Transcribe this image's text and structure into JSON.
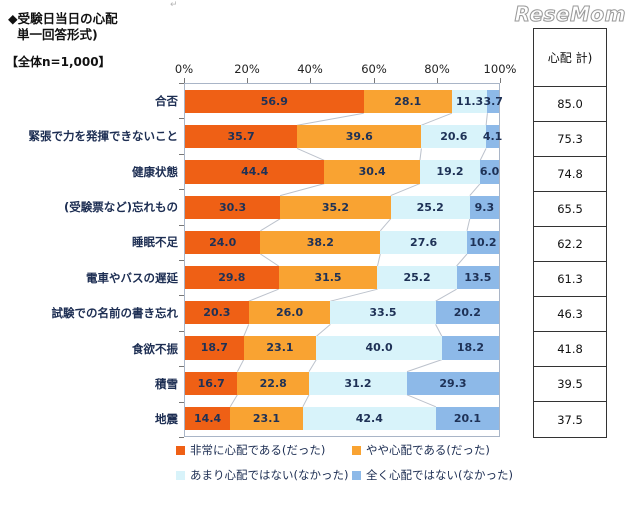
{
  "header": {
    "title_line1": "◆受験日当日の心配",
    "title_line2": "単一回答形式)",
    "sample_label": "【全体n=1,000】"
  },
  "logo": {
    "text": "ReseMom"
  },
  "marks": {
    "return_mark": "↵"
  },
  "side_table": {
    "header": "心配 計)",
    "values": [
      "85.0",
      "75.3",
      "74.8",
      "65.5",
      "62.2",
      "61.3",
      "46.3",
      "41.8",
      "39.5",
      "37.5"
    ]
  },
  "chart_data": {
    "type": "bar",
    "orientation": "horizontal-stacked",
    "title": "受験日当日の心配",
    "xlabel": "",
    "ylabel": "",
    "x_axis": {
      "min": 0,
      "max": 100,
      "ticks": [
        "0%",
        "20%",
        "40%",
        "60%",
        "80%",
        "100%"
      ]
    },
    "grid": false,
    "legend_position": "bottom",
    "categories": [
      "合否",
      "緊張で力を発揮できないこと",
      "健康状態",
      "(受験票など)忘れもの",
      "睡眠不足",
      "電車やバスの遅延",
      "試験での名前の書き忘れ",
      "食欲不振",
      "積雪",
      "地震"
    ],
    "series": [
      {
        "name": "非常に心配である(だった)",
        "color": "#EF6015",
        "values": [
          56.9,
          35.7,
          44.4,
          30.3,
          24.0,
          29.8,
          20.3,
          18.7,
          16.7,
          14.4
        ]
      },
      {
        "name": "やや心配である(だった)",
        "color": "#F9A332",
        "values": [
          28.1,
          39.6,
          30.4,
          35.2,
          38.2,
          31.5,
          26.0,
          23.1,
          22.8,
          23.1
        ]
      },
      {
        "name": "あまり心配ではない(なかった)",
        "color": "#D8F3FA",
        "values": [
          11.3,
          20.6,
          19.2,
          25.2,
          27.6,
          25.2,
          33.5,
          40.0,
          31.2,
          42.4
        ]
      },
      {
        "name": "全く心配ではない(なかった)",
        "color": "#8DB9E8",
        "values": [
          3.7,
          4.1,
          6.0,
          9.3,
          10.2,
          13.5,
          20.2,
          18.2,
          29.3,
          20.1
        ]
      }
    ],
    "value_label_color": "#1e3156",
    "connector_line_color": "#bcc2cc"
  }
}
